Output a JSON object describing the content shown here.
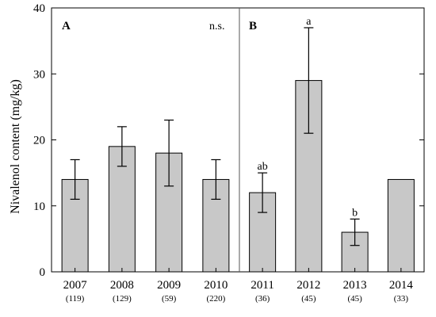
{
  "chart_data": {
    "type": "bar",
    "ylabel": "Nivalenol content (mg/kg)",
    "ylim": [
      0,
      40
    ],
    "yticks": [
      0,
      10,
      20,
      30,
      40
    ],
    "grid": false,
    "colors": {
      "bar": "#c8c8c8",
      "divider": "#555555"
    },
    "panels": [
      {
        "label": "A",
        "annotation": "n.s."
      },
      {
        "label": "B",
        "annotation": ""
      }
    ],
    "categories": [
      "2007",
      "2008",
      "2009",
      "2010",
      "2011",
      "2012",
      "2013",
      "2014"
    ],
    "sample_sizes": [
      "(119)",
      "(129)",
      "(59)",
      "(220)",
      "(36)",
      "(45)",
      "(45)",
      "(33)"
    ],
    "values": [
      14,
      19,
      18,
      14,
      12,
      29,
      6,
      14
    ],
    "error_low": [
      11,
      16,
      13,
      11,
      9,
      21,
      4,
      null
    ],
    "error_high": [
      17,
      22,
      23,
      17,
      15,
      37,
      8,
      null
    ],
    "significance": [
      "",
      "",
      "",
      "",
      "ab",
      "a",
      "b",
      ""
    ],
    "panel_of_category": [
      0,
      0,
      0,
      0,
      1,
      1,
      1,
      1
    ]
  }
}
